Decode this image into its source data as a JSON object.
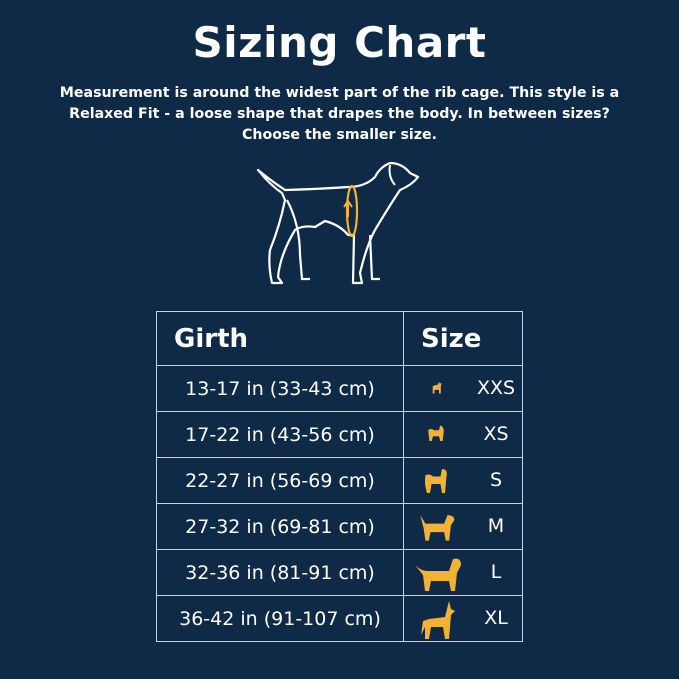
{
  "title": "Sizing Chart",
  "description": "Measurement is around the widest part of the rib cage. This style is a Relaxed Fit - a loose shape that drapes the body. In between sizes? Choose the smaller size.",
  "colors": {
    "background": "#0e2a46",
    "accent": "#f2b233",
    "text": "#ffffff"
  },
  "illustration": "dog-outline-with-girth-measurement-icon",
  "table": {
    "headers": [
      "Girth",
      "Size"
    ],
    "rows": [
      {
        "girth": "13-17 in (33-43 cm)",
        "size": "XXS",
        "icon": "chihuahua-icon"
      },
      {
        "girth": "17-22 in (43-56 cm)",
        "size": "XS",
        "icon": "pomeranian-icon"
      },
      {
        "girth": "22-27 in (56-69 cm)",
        "size": "S",
        "icon": "poodle-icon"
      },
      {
        "girth": "27-32 in (69-81 cm)",
        "size": "M",
        "icon": "spaniel-icon"
      },
      {
        "girth": "32-36 in (81-91 cm)",
        "size": "L",
        "icon": "retriever-icon"
      },
      {
        "girth": "36-42 in (91-107 cm)",
        "size": "XL",
        "icon": "great-dane-icon"
      }
    ]
  }
}
